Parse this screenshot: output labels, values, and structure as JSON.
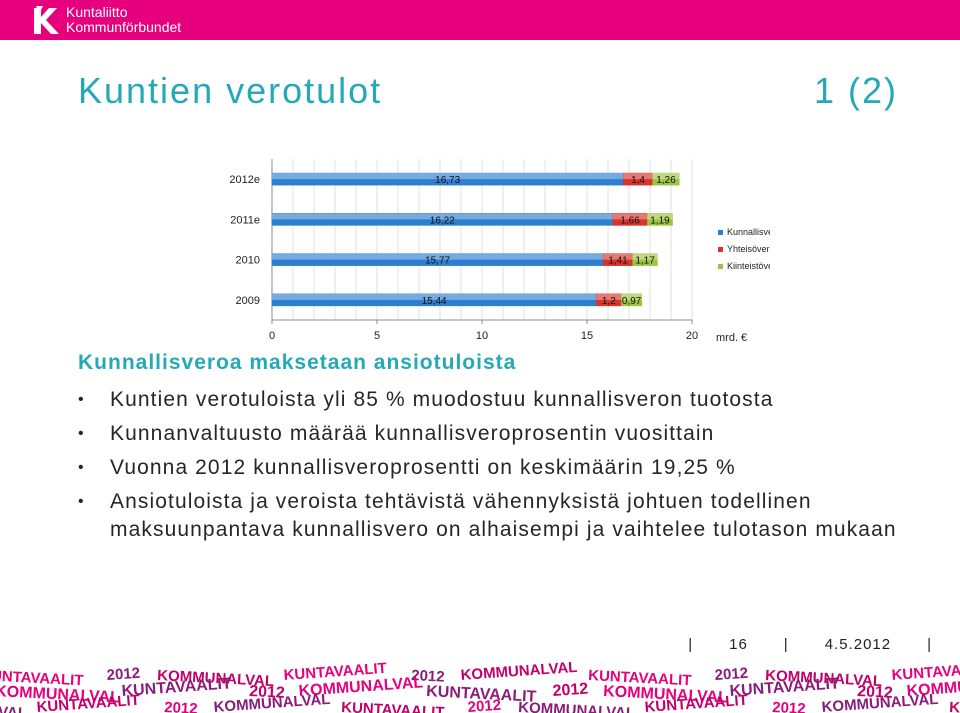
{
  "header": {
    "logo_line1": "Kuntaliitto",
    "logo_line2": "Kommunförbundet",
    "brand_color": "#e6007e"
  },
  "title": "Kuntien verotulot",
  "page_indicator": "1 (2)",
  "chart_data": {
    "type": "bar",
    "orientation": "horizontal",
    "stacked": true,
    "categories": [
      "2012e",
      "2011e",
      "2010",
      "2009"
    ],
    "series": [
      {
        "name": "Kunnallisvero",
        "color": "#2f7fd0",
        "values": [
          16.73,
          16.22,
          15.77,
          15.44
        ],
        "labels": [
          "16,73",
          "16,22",
          "15,77",
          "15,44"
        ]
      },
      {
        "name": "Yhteisövero",
        "color": "#d7342b",
        "values": [
          1.4,
          1.66,
          1.41,
          1.2
        ],
        "labels": [
          "1,4",
          "1,66",
          "1,41",
          "1,2"
        ]
      },
      {
        "name": "Kiinteistövero",
        "color": "#9bc53d",
        "values": [
          1.26,
          1.19,
          1.17,
          0.97
        ],
        "labels": [
          "1,26",
          "1,19",
          "1,17",
          "0,97"
        ]
      }
    ],
    "xticks": [
      "0",
      "5",
      "10",
      "15",
      "20"
    ],
    "xlim": [
      0,
      20
    ],
    "xlabel": "mrd. €",
    "legend_position": "right",
    "grid": true
  },
  "subtitle": "Kunnallisveroa maksetaan ansiotuloista",
  "bullets": [
    "Kuntien verotuloista yli 85 % muodostuu kunnallisveron tuotosta",
    "Kunnanvaltuusto määrää kunnallisveroprosentin vuosittain",
    "Vuonna 2012 kunnallisveroprosentti on keskimäärin 19,25 %",
    "Ansiotuloista ja veroista tehtävistä vähennyksistä johtuen todellinen maksuunpantava kunnallisvero on alhaisempi ja vaihtelee tulotason mukaan"
  ],
  "bullet_symbol": "•",
  "footer": {
    "page_number": "16",
    "date": "4.5.2012",
    "separator": "|"
  },
  "banner": {
    "text": "KUNTAVAALIT 2012 KOMMUNALVAL",
    "colors": [
      "#e6007e",
      "#8a1c7c",
      "#c2006a"
    ]
  }
}
